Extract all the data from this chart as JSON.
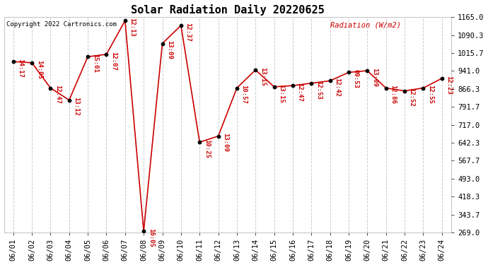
{
  "title": "Solar Radiation Daily 20220625",
  "copyright": "Copyright 2022 Cartronics.com",
  "ylabel": "Radiation (W/m2)",
  "dates": [
    "06/01",
    "06/02",
    "06/03",
    "06/04",
    "06/05",
    "06/06",
    "06/07",
    "06/08",
    "06/09",
    "06/10",
    "06/11",
    "06/12",
    "06/13",
    "06/14",
    "06/15",
    "06/16",
    "06/17",
    "06/18",
    "06/19",
    "06/20",
    "06/21",
    "06/22",
    "06/23",
    "06/24"
  ],
  "values": [
    980.0,
    975.0,
    870.0,
    820.0,
    1000.0,
    1010.0,
    1150.0,
    275.0,
    1055.0,
    1130.0,
    645.0,
    670.0,
    870.0,
    945.0,
    875.0,
    880.0,
    890.0,
    900.0,
    935.0,
    942.0,
    870.0,
    858.0,
    870.0,
    910.0
  ],
  "time_labels": [
    "14:17",
    "14:05",
    "12:47",
    "13:12",
    "15:01",
    "12:07",
    "12:13",
    "16:05",
    "13:09",
    "12:37",
    "10:25",
    "13:09",
    "10:57",
    "13:15",
    "13:15",
    "12:47",
    "12:53",
    "12:42",
    "09:53",
    "13:09",
    "12:86",
    "12:52",
    "12:55",
    "12:23"
  ],
  "ylim_min": 269.0,
  "ylim_max": 1165.0,
  "yticks": [
    269.0,
    343.7,
    418.3,
    493.0,
    567.7,
    642.3,
    717.0,
    791.7,
    866.3,
    941.0,
    1015.7,
    1090.3,
    1165.0
  ],
  "line_color": "#cc0000",
  "marker_color": "#000000",
  "label_color": "#cc0000",
  "title_color": "#000000",
  "copyright_color": "#000000",
  "ylabel_color": "#cc0000",
  "bg_color": "#ffffff",
  "grid_color": "#cccccc",
  "label_fontsize": 6.5,
  "tick_fontsize": 7.5,
  "title_fontsize": 11
}
